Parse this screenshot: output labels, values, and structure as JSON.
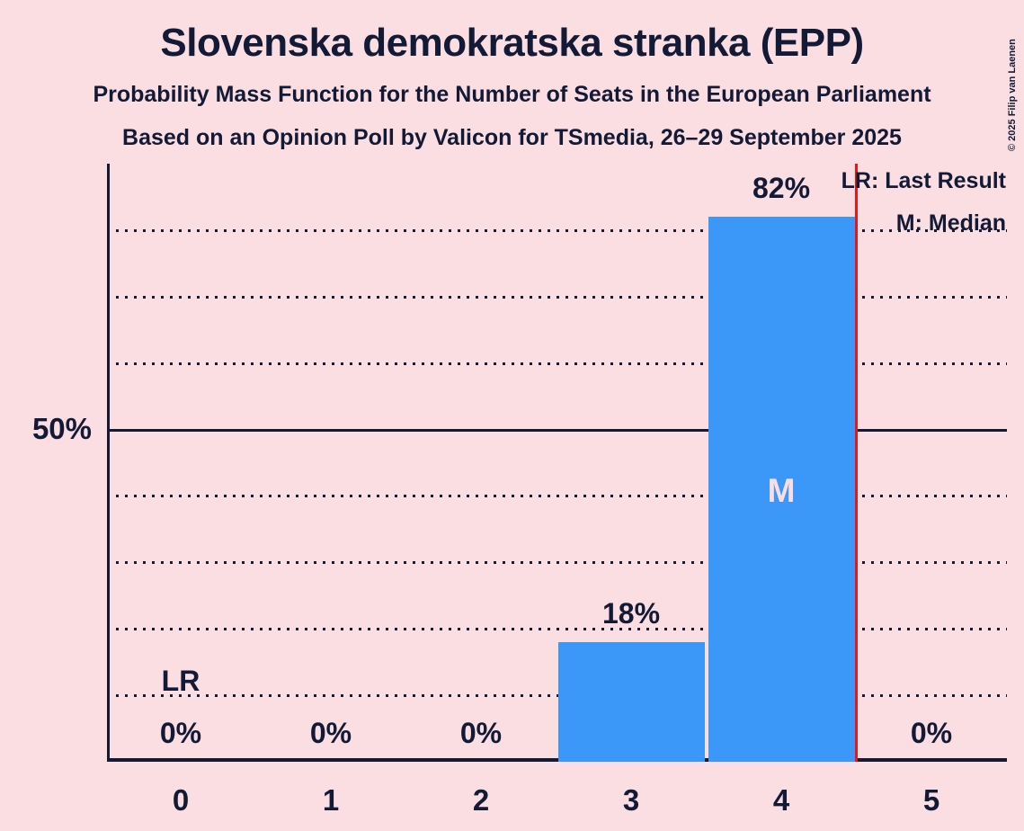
{
  "header": {
    "title": "Slovenska demokratska stranka (EPP)",
    "subtitle_line1": "Probability Mass Function for the Number of Seats in the European Parliament",
    "subtitle_line2": "Based on an Opinion Poll by Valicon for TSmedia, 26–29 September 2025"
  },
  "copyright": "© 2025 Filip van Laenen",
  "legend": {
    "last_result_label": "LR: Last Result",
    "median_label": "M: Median"
  },
  "y_axis": {
    "label_50": "50%"
  },
  "chart_data": {
    "type": "bar",
    "title": "Slovenska demokratska stranka (EPP)",
    "subtitle": "Probability Mass Function for the Number of Seats in the European Parliament",
    "source_line": "Based on an Opinion Poll by Valicon for TSmedia, 26–29 September 2025",
    "categories": [
      "0",
      "1",
      "2",
      "3",
      "4",
      "5"
    ],
    "values": [
      0,
      0,
      0,
      18,
      82,
      0
    ],
    "value_labels": [
      "0%",
      "0%",
      "0%",
      "18%",
      "82%",
      "0%"
    ],
    "xlabel": "",
    "ylabel": "",
    "ylim": [
      0,
      90
    ],
    "y_tick_labeled_pct": 50,
    "gridlines_pct": [
      10,
      20,
      30,
      40,
      60,
      70,
      80
    ],
    "solid_line_pct": 50,
    "grid": "dotted",
    "legend_position": "top-right",
    "median": {
      "seat": 4,
      "marker": "M"
    },
    "last_result": {
      "marker": "LR",
      "marker_above_seat": 0,
      "line_between_seats": [
        4,
        5
      ]
    },
    "colors": {
      "background": "#FBDEE2",
      "bar": "#3B98F9",
      "ink": "#121A36",
      "last_result_line": "#F2120F",
      "median_text": "#FBDEE2"
    }
  }
}
